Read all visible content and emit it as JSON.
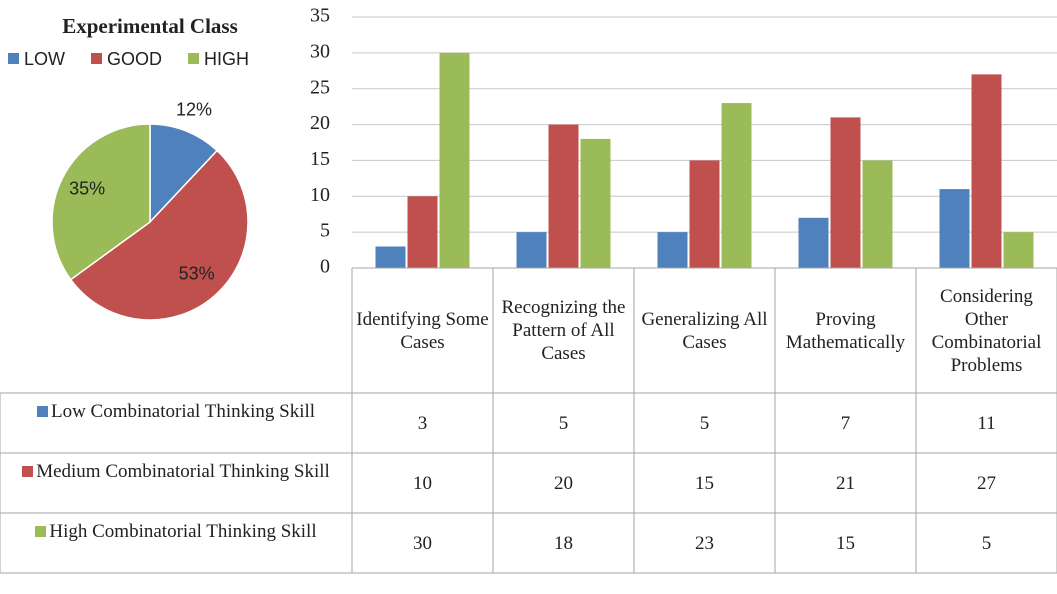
{
  "chart_data": [
    {
      "type": "pie",
      "title": "Experimental Class",
      "categories": [
        "LOW",
        "GOOD",
        "HIGH"
      ],
      "values": [
        12,
        53,
        35
      ],
      "value_labels": [
        "12%",
        "53%",
        "35%"
      ],
      "colors": [
        "#4f81bd",
        "#c0504d",
        "#9bbb59"
      ],
      "legend": "top"
    },
    {
      "type": "bar",
      "categories": [
        "Identifying Some Cases",
        "Recognizing the Pattern of All Cases",
        "Generalizing All Cases",
        "Proving Mathematically",
        "Considering Other Combinatorial Problems"
      ],
      "series": [
        {
          "name": "Low Combinatorial Thinking Skill",
          "color": "#4f81bd",
          "values": [
            3,
            5,
            5,
            7,
            11
          ]
        },
        {
          "name": "Medium Combinatorial Thinking Skill",
          "color": "#c0504d",
          "values": [
            10,
            20,
            15,
            21,
            27
          ]
        },
        {
          "name": "High Combinatorial Thinking Skill",
          "color": "#9bbb59",
          "values": [
            30,
            18,
            23,
            15,
            5
          ]
        }
      ],
      "ylim": [
        0,
        35
      ],
      "yticks": [
        0,
        5,
        10,
        15,
        20,
        25,
        30,
        35
      ],
      "grid": true,
      "data_table": true
    }
  ]
}
